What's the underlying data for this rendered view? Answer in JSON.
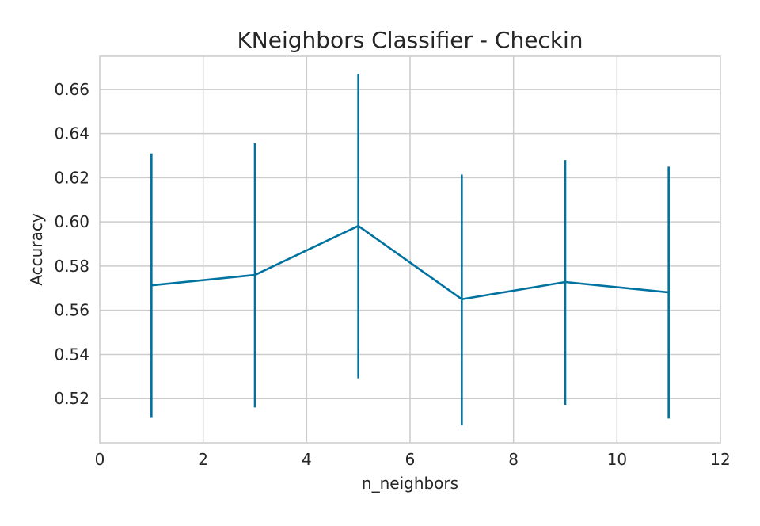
{
  "chart_data": {
    "type": "line",
    "title": "KNeighbors Classifier - Checkin",
    "xlabel": "n_neighbors",
    "ylabel": "Accuracy",
    "xlim": [
      0,
      12
    ],
    "ylim": [
      0.5,
      0.675
    ],
    "xticks": [
      0,
      2,
      4,
      6,
      8,
      10,
      12
    ],
    "xtick_labels": [
      "0",
      "2",
      "4",
      "6",
      "8",
      "10",
      "12"
    ],
    "yticks": [
      0.52,
      0.54,
      0.56,
      0.58,
      0.6,
      0.62,
      0.64,
      0.66
    ],
    "ytick_labels": [
      "0.52",
      "0.54",
      "0.56",
      "0.58",
      "0.60",
      "0.62",
      "0.64",
      "0.66"
    ],
    "grid": true,
    "color": "#0072a0",
    "series": [
      {
        "x": [
          1,
          3,
          5,
          7,
          9,
          11
        ],
        "y": [
          0.5713,
          0.576,
          0.5982,
          0.565,
          0.5728,
          0.5681
        ],
        "error_low": [
          0.5113,
          0.516,
          0.5292,
          0.508,
          0.5172,
          0.511
        ],
        "error_high": [
          0.631,
          0.6356,
          0.667,
          0.6214,
          0.628,
          0.625
        ]
      }
    ]
  }
}
